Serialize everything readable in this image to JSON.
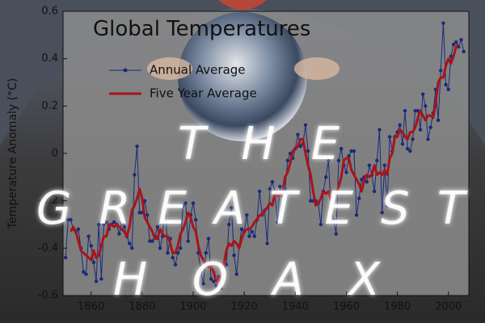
{
  "chart_data": {
    "type": "line",
    "title": "Global Temperatures",
    "y_label": "Temperature Anomaly (°C)",
    "overlay_text": [
      "THE",
      "GREATEST",
      "HOAX"
    ],
    "legend": "upper left",
    "grid": false,
    "xlim": [
      1849,
      2008
    ],
    "xticks": [
      1860,
      1880,
      1900,
      1920,
      1940,
      1960,
      1980,
      2000
    ],
    "ylim": [
      -0.6,
      0.6
    ],
    "yticks": [
      -0.6,
      -0.4,
      -0.2,
      0,
      0.2,
      0.4,
      0.6
    ],
    "x": [
      1850,
      1851,
      1852,
      1853,
      1854,
      1855,
      1856,
      1857,
      1858,
      1859,
      1860,
      1861,
      1862,
      1863,
      1864,
      1865,
      1866,
      1867,
      1868,
      1869,
      1870,
      1871,
      1872,
      1873,
      1874,
      1875,
      1876,
      1877,
      1878,
      1879,
      1880,
      1881,
      1882,
      1883,
      1884,
      1885,
      1886,
      1887,
      1888,
      1889,
      1890,
      1891,
      1892,
      1893,
      1894,
      1895,
      1896,
      1897,
      1898,
      1899,
      1900,
      1901,
      1902,
      1903,
      1904,
      1905,
      1906,
      1907,
      1908,
      1909,
      1910,
      1911,
      1912,
      1913,
      1914,
      1915,
      1916,
      1917,
      1918,
      1919,
      1920,
      1921,
      1922,
      1923,
      1924,
      1925,
      1926,
      1927,
      1928,
      1929,
      1930,
      1931,
      1932,
      1933,
      1934,
      1935,
      1936,
      1937,
      1938,
      1939,
      1940,
      1941,
      1942,
      1943,
      1944,
      1945,
      1946,
      1947,
      1948,
      1949,
      1950,
      1951,
      1952,
      1953,
      1954,
      1955,
      1956,
      1957,
      1958,
      1959,
      1960,
      1961,
      1962,
      1963,
      1964,
      1965,
      1966,
      1967,
      1968,
      1969,
      1970,
      1971,
      1972,
      1973,
      1974,
      1975,
      1976,
      1977,
      1978,
      1979,
      1980,
      1981,
      1982,
      1983,
      1984,
      1985,
      1986,
      1987,
      1988,
      1989,
      1990,
      1991,
      1992,
      1993,
      1994,
      1995,
      1996,
      1997,
      1998,
      1999,
      2000,
      2001,
      2002,
      2003,
      2004,
      2005,
      2006
    ],
    "series": [
      {
        "name": "Annual Average",
        "color": "#1a2a7a",
        "values": [
          -0.44,
          -0.28,
          -0.28,
          -0.32,
          -0.33,
          -0.32,
          -0.4,
          -0.5,
          -0.51,
          -0.35,
          -0.39,
          -0.46,
          -0.54,
          -0.3,
          -0.53,
          -0.3,
          -0.29,
          -0.32,
          -0.3,
          -0.29,
          -0.3,
          -0.34,
          -0.29,
          -0.31,
          -0.35,
          -0.38,
          -0.4,
          -0.09,
          0.03,
          -0.25,
          -0.25,
          -0.2,
          -0.26,
          -0.37,
          -0.37,
          -0.35,
          -0.31,
          -0.4,
          -0.35,
          -0.2,
          -0.42,
          -0.36,
          -0.44,
          -0.47,
          -0.42,
          -0.4,
          -0.22,
          -0.21,
          -0.37,
          -0.26,
          -0.21,
          -0.28,
          -0.42,
          -0.5,
          -0.55,
          -0.42,
          -0.36,
          -0.53,
          -0.54,
          -0.56,
          -0.52,
          -0.57,
          -0.48,
          -0.47,
          -0.3,
          -0.23,
          -0.43,
          -0.51,
          -0.39,
          -0.32,
          -0.33,
          -0.26,
          -0.35,
          -0.33,
          -0.35,
          -0.28,
          -0.16,
          -0.26,
          -0.24,
          -0.38,
          -0.15,
          -0.12,
          -0.16,
          -0.29,
          -0.14,
          -0.18,
          -0.15,
          -0.03,
          0.0,
          -0.02,
          0.02,
          0.08,
          0.03,
          0.04,
          0.12,
          0.01,
          -0.2,
          -0.2,
          -0.2,
          -0.21,
          -0.3,
          -0.16,
          -0.1,
          -0.03,
          -0.24,
          -0.28,
          -0.34,
          -0.03,
          0.02,
          -0.05,
          -0.08,
          -0.01,
          0.01,
          0.01,
          -0.26,
          -0.19,
          -0.11,
          -0.1,
          -0.12,
          -0.05,
          -0.09,
          -0.16,
          -0.03,
          0.1,
          -0.25,
          -0.05,
          -0.22,
          0.07,
          0.01,
          0.07,
          0.09,
          0.12,
          0.04,
          0.18,
          0.02,
          0.01,
          0.06,
          0.18,
          0.18,
          0.1,
          0.25,
          0.2,
          0.06,
          0.11,
          0.17,
          0.27,
          0.14,
          0.35,
          0.55,
          0.29,
          0.27,
          0.41,
          0.46,
          0.47,
          0.45,
          0.48,
          0.43
        ]
      },
      {
        "name": "Five Year Average",
        "color": "#a8141a",
        "values": [
          null,
          null,
          -0.33,
          -0.31,
          -0.33,
          -0.37,
          -0.41,
          -0.42,
          -0.43,
          -0.44,
          -0.45,
          -0.41,
          -0.44,
          -0.43,
          -0.39,
          -0.35,
          -0.35,
          -0.3,
          -0.3,
          -0.31,
          -0.3,
          -0.31,
          -0.32,
          -0.33,
          -0.35,
          -0.31,
          -0.24,
          -0.22,
          -0.19,
          -0.15,
          -0.19,
          -0.27,
          -0.29,
          -0.31,
          -0.33,
          -0.36,
          -0.36,
          -0.32,
          -0.34,
          -0.35,
          -0.35,
          -0.38,
          -0.42,
          -0.42,
          -0.39,
          -0.34,
          -0.32,
          -0.29,
          -0.25,
          -0.27,
          -0.31,
          -0.33,
          -0.39,
          -0.43,
          -0.45,
          -0.47,
          -0.48,
          -0.48,
          -0.5,
          -0.54,
          -0.53,
          -0.52,
          -0.47,
          -0.41,
          -0.38,
          -0.39,
          -0.37,
          -0.38,
          -0.4,
          -0.36,
          -0.33,
          -0.32,
          -0.32,
          -0.31,
          -0.29,
          -0.28,
          -0.26,
          -0.26,
          -0.24,
          -0.23,
          -0.21,
          -0.22,
          -0.17,
          -0.18,
          -0.18,
          -0.16,
          -0.1,
          -0.08,
          -0.04,
          0.01,
          0.02,
          0.03,
          0.06,
          0.06,
          0.0,
          -0.05,
          -0.09,
          -0.16,
          -0.22,
          -0.21,
          -0.19,
          -0.16,
          -0.17,
          -0.16,
          -0.2,
          -0.18,
          -0.17,
          -0.14,
          -0.1,
          -0.03,
          -0.02,
          -0.02,
          -0.07,
          -0.09,
          -0.11,
          -0.13,
          -0.16,
          -0.11,
          -0.09,
          -0.1,
          -0.09,
          -0.05,
          -0.09,
          -0.08,
          -0.09,
          -0.07,
          -0.09,
          -0.02,
          0.0,
          0.07,
          0.07,
          0.1,
          0.09,
          0.07,
          0.06,
          0.09,
          0.09,
          0.11,
          0.15,
          0.18,
          0.16,
          0.14,
          0.16,
          0.16,
          0.15,
          0.21,
          0.3,
          0.32,
          0.32,
          0.37,
          0.4,
          0.38,
          0.41,
          0.45,
          0.46,
          null,
          null
        ]
      }
    ]
  }
}
